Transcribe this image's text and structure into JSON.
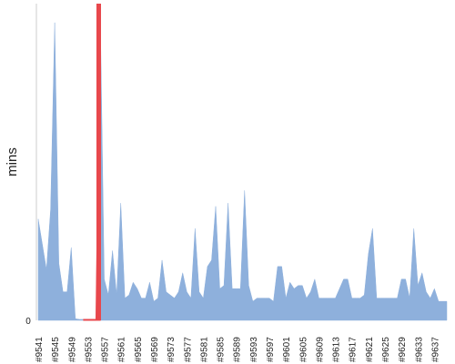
{
  "chart_data": {
    "type": "area",
    "title": "",
    "xlabel": "",
    "ylabel": "mins",
    "ylim": [
      0,
      100
    ],
    "y_ticks": [
      {
        "value": 0,
        "label": "0"
      }
    ],
    "x": [
      "#9541",
      "#9542",
      "#9543",
      "#9544",
      "#9545",
      "#9546",
      "#9547",
      "#9548",
      "#9549",
      "#9550",
      "#9551",
      "#9552",
      "#9553",
      "#9554",
      "#9555",
      "#9556",
      "#9557",
      "#9558",
      "#9559",
      "#9560",
      "#9561",
      "#9562",
      "#9563",
      "#9564",
      "#9565",
      "#9566",
      "#9567",
      "#9568",
      "#9569",
      "#9570",
      "#9571",
      "#9572",
      "#9573",
      "#9574",
      "#9575",
      "#9576",
      "#9577",
      "#9578",
      "#9579",
      "#9580",
      "#9581",
      "#9582",
      "#9583",
      "#9584",
      "#9585",
      "#9586",
      "#9587",
      "#9588",
      "#9589",
      "#9590",
      "#9591",
      "#9592",
      "#9593",
      "#9594",
      "#9595",
      "#9596",
      "#9597",
      "#9598",
      "#9599",
      "#9600",
      "#9601",
      "#9602",
      "#9603",
      "#9604",
      "#9605",
      "#9606",
      "#9607",
      "#9608",
      "#9609",
      "#9610",
      "#9611",
      "#9612",
      "#9613",
      "#9614",
      "#9615",
      "#9616",
      "#9617",
      "#9618",
      "#9619",
      "#9620",
      "#9621",
      "#9622",
      "#9623",
      "#9624",
      "#9625",
      "#9626",
      "#9627",
      "#9628",
      "#9629",
      "#9630",
      "#9631",
      "#9632",
      "#9633",
      "#9634",
      "#9635",
      "#9636",
      "#9637",
      "#9638",
      "#9639",
      "#9640"
    ],
    "x_tick_labels": [
      "#9541",
      "#9545",
      "#9549",
      "#9553",
      "#9557",
      "#9561",
      "#9565",
      "#9569",
      "#9573",
      "#9577",
      "#9581",
      "#9585",
      "#9589",
      "#9593",
      "#9597",
      "#9601",
      "#9605",
      "#9609",
      "#9613",
      "#9617",
      "#9621",
      "#9625",
      "#9629",
      "#9633",
      "#9637"
    ],
    "series": [
      {
        "values": [
          32,
          24,
          16,
          35,
          94,
          18,
          9,
          9,
          23,
          0.5,
          0.3,
          0.3,
          0.3,
          0.3,
          0.3,
          100,
          13,
          8,
          22,
          8,
          37,
          7,
          8,
          12,
          10,
          7,
          7,
          12,
          6,
          7,
          19,
          9,
          8,
          7,
          9,
          15,
          9,
          7,
          29,
          9,
          7,
          17,
          19,
          36,
          10,
          11,
          37,
          10,
          10,
          10,
          41,
          11,
          6,
          7,
          7,
          7,
          7,
          6,
          17,
          17,
          7,
          12,
          10,
          11,
          11,
          7,
          9,
          13,
          7,
          7,
          7,
          7,
          7,
          10,
          13,
          13,
          7,
          7,
          7,
          8,
          21,
          29,
          7,
          7,
          7,
          7,
          7,
          7,
          13,
          13,
          7,
          29,
          11,
          15,
          9,
          7,
          10,
          6,
          6,
          6
        ],
        "color": "#8eb0dc"
      }
    ],
    "highlight": {
      "from": "#9553",
      "to": "#9555",
      "color": "#e8474c"
    },
    "grid": false,
    "legend": "none",
    "colors": {
      "area": "#8eb0dc",
      "highlight_area": "#e98585",
      "highlight_band": "#e8474c",
      "axis": "#cccccc",
      "text": "#222222"
    }
  }
}
